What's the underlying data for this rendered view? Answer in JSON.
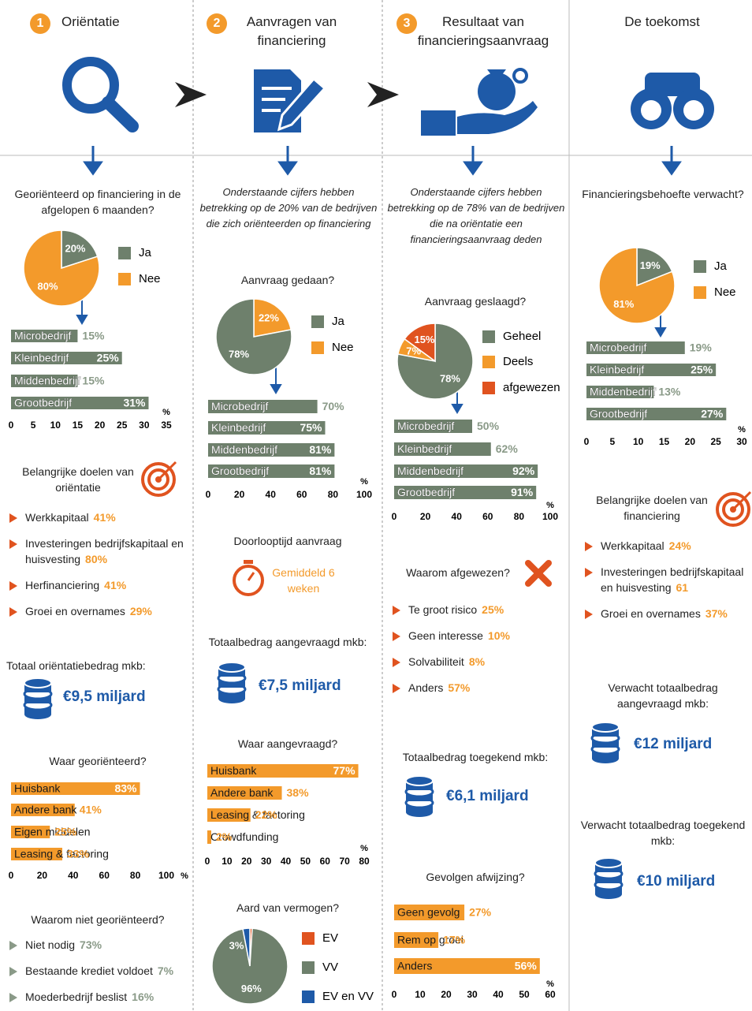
{
  "columns": [
    {
      "number": "1",
      "title": "Oriëntatie"
    },
    {
      "number": "2",
      "title": "Aanvragen van financiering"
    },
    {
      "number": "3",
      "title": "Resultaat van financieringsaanvraag"
    },
    {
      "title": "De toekomst"
    }
  ],
  "notes": [
    "Onderstaande cijfers hebben betrekking op de 20% van de bedrijven die zich oriënteerden op financiering",
    "Onderstaande cijfers hebben betrekking op de 78% van de bedrijven die na oriëntatie een financieringsaanvraag deden"
  ],
  "lists": [
    {
      "title": "Belangrijke doelen van oriëntatie",
      "items": [
        {
          "label": "Werkkapitaal",
          "value": "41%"
        },
        {
          "label": "Investeringen bedrijfskapitaal en huisvesting",
          "value": "80%"
        },
        {
          "label": "Herfinanciering",
          "value": "41%"
        },
        {
          "label": "Groei en overnames",
          "value": "29%"
        }
      ]
    },
    {
      "title": "Waarom niet georiënteerd?",
      "items": [
        {
          "label": "Niet nodig",
          "value": "73%"
        },
        {
          "label": "Bestaande krediet voldoet",
          "value": "7%"
        },
        {
          "label": "Moederbedrijf beslist",
          "value": "16%"
        }
      ]
    },
    {
      "title": "Waarom afgewezen?",
      "items": [
        {
          "label": "Te groot risico",
          "value": "25%"
        },
        {
          "label": "Geen interesse",
          "value": "10%"
        },
        {
          "label": "Solvabiliteit",
          "value": "8%"
        },
        {
          "label": "Anders",
          "value": "57%"
        }
      ]
    },
    {
      "title": "Belangrijke doelen van financiering",
      "items": [
        {
          "label": "Werkkapitaal",
          "value": "24%"
        },
        {
          "label": "Investeringen bedrijfskapitaal en huisvesting",
          "value": "61"
        },
        {
          "label": "Groei en overnames",
          "value": "37%"
        }
      ]
    }
  ],
  "amounts": [
    {
      "label": "Totaal oriëntatiebedrag mkb:",
      "amount": "€9,5 miljard"
    },
    {
      "label": "Totaalbedrag aangevraagd mkb:",
      "amount": "€7,5 miljard"
    },
    {
      "label": "Totaalbedrag toegekend mkb:",
      "amount": "€6,1 miljard"
    },
    {
      "label": "Verwacht totaalbedrag aangevraagd mkb:",
      "amount": "€12 miljard"
    },
    {
      "label": "Verwacht totaalbedrag toegekend mkb:",
      "amount": "€10 miljard"
    }
  ],
  "duration": {
    "title": "Doorlooptijd aanvraag",
    "text": "Gemiddeld 6 weken"
  },
  "chart_data": [
    {
      "type": "pie",
      "title": "Georiënteerd op financiering in de afgelopen 6 maanden?",
      "categories": [
        "Ja",
        "Nee"
      ],
      "values": [
        20,
        80
      ],
      "value_labels": [
        "20%",
        "80%"
      ],
      "colors": [
        "#6e806c",
        "#f39a2b"
      ]
    },
    {
      "type": "bar",
      "categories": [
        "Microbedrijf",
        "Kleinbedrijf",
        "Middenbedrijf",
        "Grootbedrijf"
      ],
      "values": [
        15,
        25,
        15,
        31
      ],
      "value_labels": [
        "15%",
        "25%",
        "15%",
        "31%"
      ],
      "color": "#6e806c",
      "xlim": [
        0,
        35
      ],
      "xticks": [
        0,
        5,
        10,
        15,
        20,
        25,
        30,
        35
      ],
      "xlabel": "%"
    },
    {
      "type": "bar",
      "title": "Waar georiënteerd?",
      "categories": [
        "Huisbank",
        "Andere bank",
        "Eigen middelen",
        "Leasing & factoring"
      ],
      "values": [
        83,
        41,
        25,
        33
      ],
      "value_labels": [
        "83%",
        "41%",
        "25%",
        "33%"
      ],
      "color": "#f39a2b",
      "xlim": [
        0,
        100
      ],
      "xticks": [
        0,
        20,
        40,
        60,
        80,
        100
      ],
      "xlabel": "%"
    },
    {
      "type": "pie",
      "title": "Aanvraag gedaan?",
      "categories": [
        "Ja",
        "Nee"
      ],
      "values": [
        78,
        22
      ],
      "value_labels": [
        "78%",
        "22%"
      ],
      "colors": [
        "#6e806c",
        "#f39a2b"
      ]
    },
    {
      "type": "bar",
      "categories": [
        "Microbedrijf",
        "Kleinbedrijf",
        "Middenbedrijf",
        "Grootbedrijf"
      ],
      "values": [
        70,
        75,
        81,
        81
      ],
      "value_labels": [
        "70%",
        "75%",
        "81%",
        "81%"
      ],
      "color": "#6e806c",
      "xlim": [
        0,
        100
      ],
      "xticks": [
        0,
        20,
        40,
        60,
        80,
        100
      ],
      "xlabel": "%"
    },
    {
      "type": "bar",
      "title": "Waar aangevraagd?",
      "categories": [
        "Huisbank",
        "Andere bank",
        "Leasing & factoring",
        "Crowdfunding"
      ],
      "values": [
        77,
        38,
        22,
        2
      ],
      "value_labels": [
        "77%",
        "38%",
        "22%",
        "2%"
      ],
      "color": "#f39a2b",
      "xlim": [
        0,
        80
      ],
      "xticks": [
        0,
        10,
        20,
        30,
        40,
        50,
        60,
        70,
        80
      ],
      "xlabel": "%"
    },
    {
      "type": "pie",
      "title": "Aard van vermogen?",
      "categories": [
        "EV",
        "VV",
        "EV en VV"
      ],
      "values": [
        1,
        96,
        3
      ],
      "value_labels": [
        "1%",
        "96%",
        "3%"
      ],
      "colors": [
        "#e0531f",
        "#6e806c",
        "#1e5aa8"
      ]
    },
    {
      "type": "pie",
      "title": "Aanvraag geslaagd?",
      "categories": [
        "Geheel",
        "Deels",
        "afgewezen"
      ],
      "values": [
        78,
        7,
        15
      ],
      "value_labels": [
        "78%",
        "7%",
        "15%"
      ],
      "colors": [
        "#6e806c",
        "#f39a2b",
        "#e0531f"
      ]
    },
    {
      "type": "bar",
      "categories": [
        "Microbedrijf",
        "Kleinbedrijf",
        "Middenbedrijf",
        "Grootbedrijf"
      ],
      "values": [
        50,
        62,
        92,
        91
      ],
      "value_labels": [
        "50%",
        "62%",
        "92%",
        "91%"
      ],
      "color": "#6e806c",
      "xlim": [
        0,
        100
      ],
      "xticks": [
        0,
        20,
        40,
        60,
        80,
        100
      ],
      "xlabel": "%"
    },
    {
      "type": "bar",
      "title": "Gevolgen afwijzing?",
      "categories": [
        "Geen gevolg",
        "Rem op groei",
        "Anders"
      ],
      "values": [
        27,
        17,
        56
      ],
      "value_labels": [
        "27%",
        "17%",
        "56%"
      ],
      "color": "#f39a2b",
      "xlim": [
        0,
        60
      ],
      "xticks": [
        0,
        10,
        20,
        30,
        40,
        50,
        60
      ],
      "xlabel": "%"
    },
    {
      "type": "pie",
      "title": "Financieringsbehoefte verwacht?",
      "categories": [
        "Ja",
        "Nee"
      ],
      "values": [
        19,
        81
      ],
      "value_labels": [
        "19%",
        "81%"
      ],
      "colors": [
        "#6e806c",
        "#f39a2b"
      ]
    },
    {
      "type": "bar",
      "categories": [
        "Microbedrijf",
        "Kleinbedrijf",
        "Middenbedrijf",
        "Grootbedrijf"
      ],
      "values": [
        19,
        25,
        13,
        27
      ],
      "value_labels": [
        "19%",
        "25%",
        "13%",
        "27%"
      ],
      "color": "#6e806c",
      "xlim": [
        0,
        30
      ],
      "xticks": [
        0,
        5,
        10,
        15,
        20,
        25,
        30
      ],
      "xlabel": "%"
    }
  ]
}
